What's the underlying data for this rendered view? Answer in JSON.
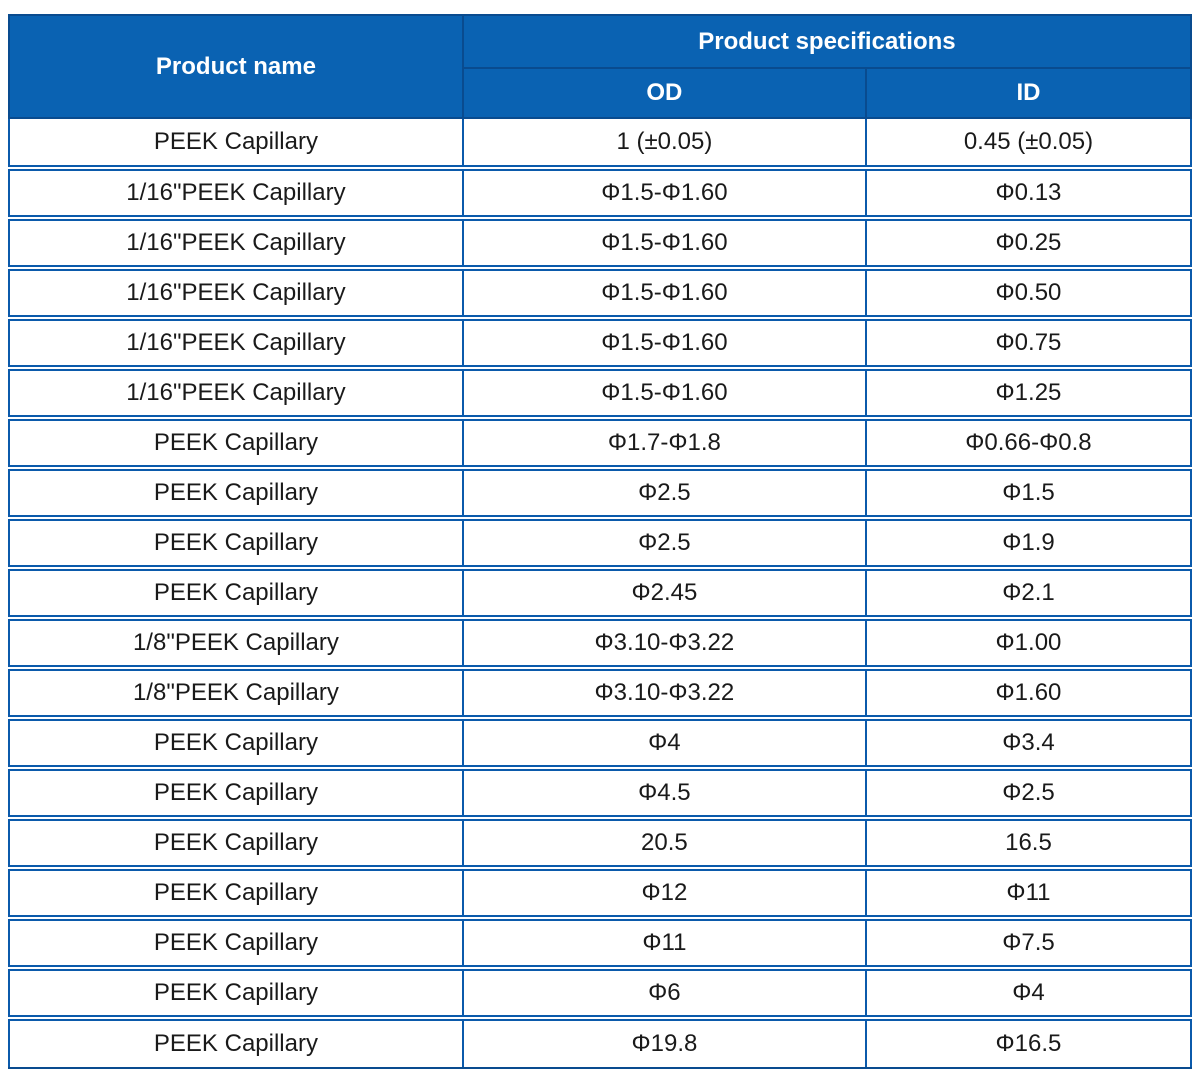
{
  "colors": {
    "header_bg": "#0A62B2",
    "inner_border": "#0B5AAB",
    "outer_border": "#094B8F",
    "header_text": "#FFFFFF",
    "body_text": "#1A1A1A"
  },
  "chart_data": {
    "type": "table",
    "header": {
      "product_name": "Product name",
      "product_specifications": "Product specifications",
      "od": "OD",
      "id": "ID"
    },
    "rows": [
      {
        "name": "PEEK Capillary",
        "od": "1 (±0.05)",
        "id": "0.45 (±0.05)"
      },
      {
        "name": "1/16\"PEEK Capillary",
        "od": "Φ1.5-Φ1.60",
        "id": "Φ0.13"
      },
      {
        "name": "1/16\"PEEK Capillary",
        "od": "Φ1.5-Φ1.60",
        "id": "Φ0.25"
      },
      {
        "name": "1/16\"PEEK Capillary",
        "od": "Φ1.5-Φ1.60",
        "id": "Φ0.50"
      },
      {
        "name": "1/16\"PEEK Capillary",
        "od": "Φ1.5-Φ1.60",
        "id": "Φ0.75"
      },
      {
        "name": "1/16\"PEEK Capillary",
        "od": "Φ1.5-Φ1.60",
        "id": "Φ1.25"
      },
      {
        "name": "PEEK Capillary",
        "od": "Φ1.7-Φ1.8",
        "id": "Φ0.66-Φ0.8"
      },
      {
        "name": "PEEK Capillary",
        "od": "Φ2.5",
        "id": "Φ1.5"
      },
      {
        "name": "PEEK Capillary",
        "od": "Φ2.5",
        "id": "Φ1.9"
      },
      {
        "name": "PEEK Capillary",
        "od": "Φ2.45",
        "id": "Φ2.1"
      },
      {
        "name": "1/8\"PEEK Capillary",
        "od": "Φ3.10-Φ3.22",
        "id": "Φ1.00"
      },
      {
        "name": "1/8\"PEEK Capillary",
        "od": "Φ3.10-Φ3.22",
        "id": "Φ1.60"
      },
      {
        "name": "PEEK Capillary",
        "od": "Φ4",
        "id": "Φ3.4"
      },
      {
        "name": "PEEK Capillary",
        "od": "Φ4.5",
        "id": "Φ2.5"
      },
      {
        "name": "PEEK Capillary",
        "od": "20.5",
        "id": "16.5"
      },
      {
        "name": "PEEK Capillary",
        "od": "Φ12",
        "id": "Φ11"
      },
      {
        "name": "PEEK Capillary",
        "od": "Φ11",
        "id": "Φ7.5"
      },
      {
        "name": "PEEK Capillary",
        "od": "Φ6",
        "id": "Φ4"
      },
      {
        "name": "PEEK Capillary",
        "od": "Φ19.8",
        "id": "Φ16.5"
      }
    ]
  }
}
